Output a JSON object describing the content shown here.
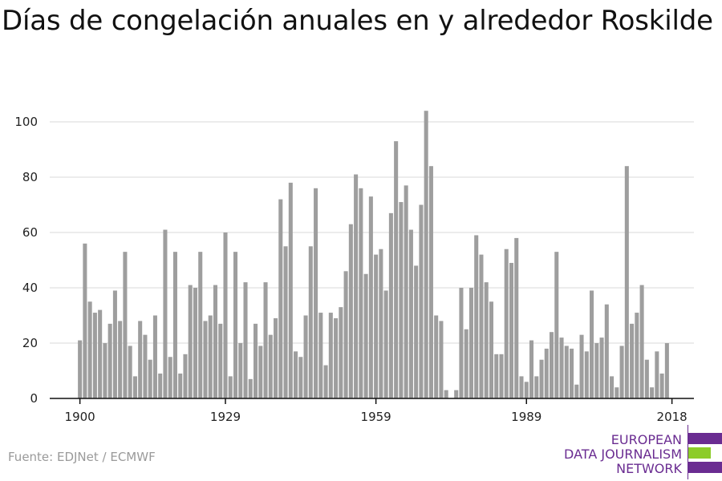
{
  "title": "Días de congelación anuales en y alrededor Roskilde",
  "source": "Fuente: EDJNet / ECMWF",
  "logo": {
    "line1": "EUROPEAN",
    "line2": "DATA JOURNALISM",
    "line3": "NETWORK",
    "colors": {
      "purple": "#6a2c91",
      "green": "#8ccc2a"
    }
  },
  "chart_data": {
    "type": "bar",
    "title": "Días de congelación anuales en y alrededor Roskilde",
    "xlabel": "",
    "ylabel": "",
    "x_start": 1900,
    "x_ticks": [
      1900,
      1929,
      1959,
      1989,
      2018
    ],
    "y_ticks": [
      0,
      20,
      40,
      60,
      80,
      100
    ],
    "ylim": [
      0,
      108
    ],
    "xlim": [
      1899.5,
      2019.5
    ],
    "grid": true,
    "bar_color": "#9e9e9e",
    "series": [
      {
        "x": [
          1900,
          1901,
          1902,
          1903,
          1904,
          1905,
          1906,
          1907,
          1908,
          1909,
          1910,
          1911,
          1912,
          1913,
          1914,
          1915,
          1916,
          1917,
          1918,
          1919,
          1920,
          1921,
          1922,
          1923,
          1924,
          1925,
          1926,
          1927,
          1928,
          1929,
          1930,
          1931,
          1932,
          1933,
          1934,
          1935,
          1936,
          1937,
          1938,
          1939,
          1940,
          1941,
          1942,
          1943,
          1944,
          1945,
          1946,
          1947,
          1948,
          1949,
          1950,
          1951,
          1952,
          1953,
          1954,
          1955,
          1956,
          1957,
          1958,
          1959,
          1960,
          1961,
          1962,
          1963,
          1964,
          1965,
          1966,
          1967,
          1968,
          1969,
          1970,
          1971,
          1972,
          1973,
          1974,
          1975,
          1976,
          1977,
          1978,
          1979,
          1980,
          1981,
          1982,
          1983,
          1984,
          1985,
          1986,
          1987,
          1988,
          1989,
          1990,
          1991,
          1992,
          1993,
          1994,
          1995,
          1996,
          1997,
          1998,
          1999,
          2000,
          2001,
          2002,
          2003,
          2004,
          2005,
          2006,
          2007,
          2008,
          2009,
          2010,
          2011,
          2012,
          2013,
          2014,
          2015,
          2016,
          2017,
          2018
        ],
        "values": [
          21,
          56,
          35,
          31,
          32,
          20,
          27,
          39,
          28,
          53,
          19,
          8,
          28,
          23,
          14,
          30,
          9,
          61,
          15,
          53,
          9,
          16,
          41,
          40,
          53,
          28,
          30,
          41,
          27,
          60,
          8,
          53,
          20,
          42,
          7,
          27,
          19,
          42,
          23,
          29,
          72,
          55,
          78,
          17,
          15,
          30,
          55,
          76,
          31,
          12,
          31,
          29,
          33,
          46,
          63,
          81,
          76,
          45,
          73,
          52,
          54,
          39,
          67,
          93,
          71,
          77,
          61,
          48,
          70,
          104,
          84,
          30,
          28,
          3,
          0,
          3,
          40,
          25,
          40,
          59,
          52,
          42,
          35,
          16,
          16,
          54,
          49,
          58,
          8,
          6,
          21,
          8,
          14,
          18,
          24,
          53,
          22,
          19,
          18,
          5,
          23,
          17,
          39,
          20,
          22,
          34,
          8,
          4,
          19,
          84,
          27,
          31,
          41,
          14,
          4,
          17,
          9,
          20,
          0
        ]
      }
    ]
  }
}
